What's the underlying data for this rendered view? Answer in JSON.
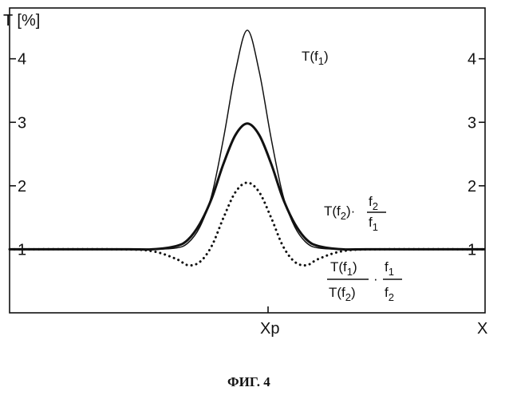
{
  "figure": {
    "caption": "ФИГ. 4"
  },
  "chart_data": {
    "type": "line",
    "ylabel": "T [%]",
    "xlabel": "X",
    "x_marker": "Xp",
    "xlim": [
      -1,
      1
    ],
    "ylim": [
      0,
      4.8
    ],
    "yticks": [
      "1",
      "2",
      "3",
      "4"
    ],
    "series": [
      {
        "name": "T(f1)",
        "style": "thin",
        "x": [
          -1.0,
          -0.5,
          -0.4,
          -0.3,
          -0.25,
          -0.2,
          -0.15,
          -0.1,
          -0.05,
          0,
          0.05,
          0.1,
          0.15,
          0.2,
          0.25,
          0.3,
          0.4,
          0.5,
          1.0
        ],
        "y": [
          1.0,
          1.0,
          1.0,
          1.02,
          1.1,
          1.35,
          1.85,
          2.75,
          3.8,
          4.45,
          3.8,
          2.75,
          1.85,
          1.35,
          1.1,
          1.02,
          1.0,
          1.0,
          1.0
        ]
      },
      {
        "name": "T(f2)·f2/f1",
        "style": "thick",
        "x": [
          -1.0,
          -0.5,
          -0.4,
          -0.3,
          -0.25,
          -0.2,
          -0.15,
          -0.1,
          -0.05,
          0,
          0.05,
          0.1,
          0.15,
          0.2,
          0.25,
          0.3,
          0.4,
          0.5,
          1.0
        ],
        "y": [
          1.0,
          1.0,
          1.0,
          1.05,
          1.15,
          1.4,
          1.8,
          2.35,
          2.8,
          2.98,
          2.8,
          2.35,
          1.8,
          1.4,
          1.15,
          1.05,
          1.0,
          1.0,
          1.0
        ]
      },
      {
        "name": "T(f1)/T(f2)·f1/f2",
        "style": "dotted",
        "x": [
          -1.0,
          -0.55,
          -0.4,
          -0.3,
          -0.25,
          -0.2,
          -0.15,
          -0.1,
          -0.05,
          0,
          0.05,
          0.1,
          0.15,
          0.2,
          0.25,
          0.3,
          0.4,
          0.55,
          1.0
        ],
        "y": [
          1.0,
          1.0,
          0.97,
          0.85,
          0.75,
          0.8,
          1.05,
          1.5,
          1.9,
          2.05,
          1.9,
          1.5,
          1.05,
          0.8,
          0.75,
          0.85,
          0.97,
          1.0,
          1.0
        ]
      }
    ],
    "annotations": [
      {
        "id": "t1",
        "parts": [
          "T(f",
          "1",
          ")"
        ]
      },
      {
        "id": "t2",
        "parts": [
          "T(f",
          "2",
          ")·",
          "f",
          "2",
          "f",
          "1"
        ]
      },
      {
        "id": "t3",
        "parts": [
          "T(f",
          "1",
          ")",
          "T(f",
          "2",
          ")",
          "·",
          "f",
          "1",
          "f",
          "2"
        ]
      }
    ]
  }
}
